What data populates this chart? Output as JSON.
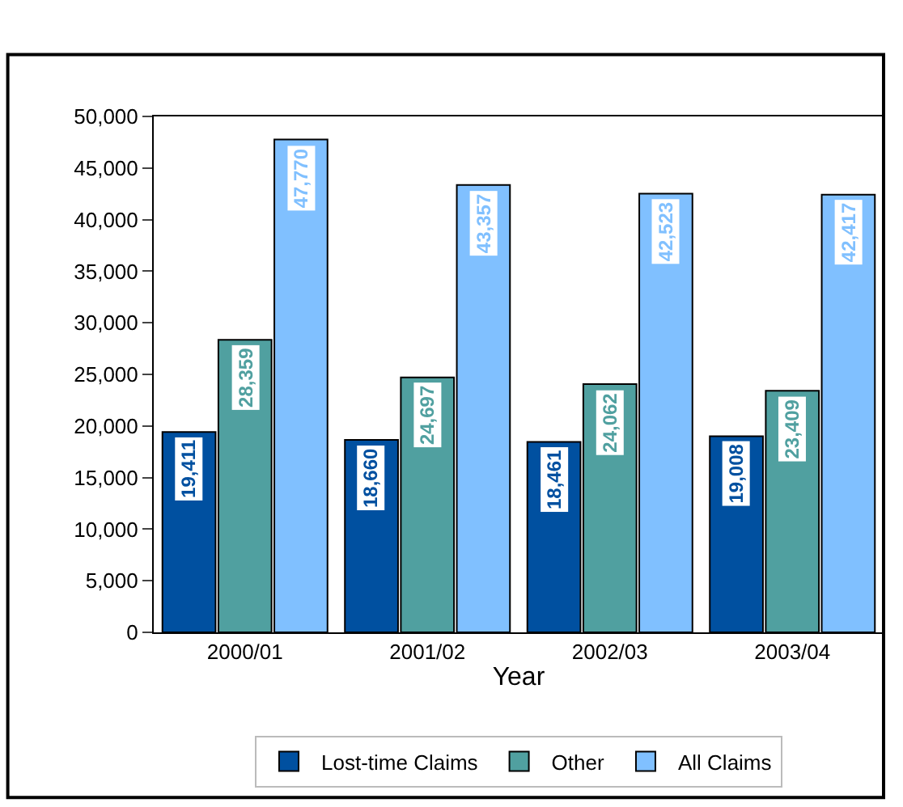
{
  "chart_data": {
    "type": "bar",
    "xlabel": "Year",
    "categories": [
      "2000/01",
      "2001/02",
      "2002/03",
      "2003/04"
    ],
    "series": [
      {
        "name": "Lost-time Claims",
        "color": "#0050a0",
        "values": [
          19411,
          18660,
          18461,
          19008
        ],
        "value_labels": [
          "19,411",
          "18,660",
          "18,461",
          "19,008"
        ]
      },
      {
        "name": "Other",
        "color": "#50a0a0",
        "values": [
          28359,
          24697,
          24062,
          23409
        ],
        "value_labels": [
          "28,359",
          "24,697",
          "24,062",
          "23,409"
        ]
      },
      {
        "name": "All Claims",
        "color": "#80c0ff",
        "values": [
          47770,
          43357,
          42523,
          42417
        ],
        "value_labels": [
          "47,770",
          "43,357",
          "42,523",
          "42,417"
        ]
      }
    ],
    "ylim": [
      0,
      50000
    ],
    "yticks": [
      {
        "value": 0,
        "label": "0"
      },
      {
        "value": 5000,
        "label": "5,000"
      },
      {
        "value": 10000,
        "label": "10,000"
      },
      {
        "value": 15000,
        "label": "15,000"
      },
      {
        "value": 20000,
        "label": "20,000"
      },
      {
        "value": 25000,
        "label": "25,000"
      },
      {
        "value": 30000,
        "label": "30,000"
      },
      {
        "value": 35000,
        "label": "35,000"
      },
      {
        "value": 40000,
        "label": "40,000"
      },
      {
        "value": 45000,
        "label": "45,000"
      },
      {
        "value": 50000,
        "label": "50,000"
      }
    ],
    "legend": "bottom",
    "grid": false
  }
}
